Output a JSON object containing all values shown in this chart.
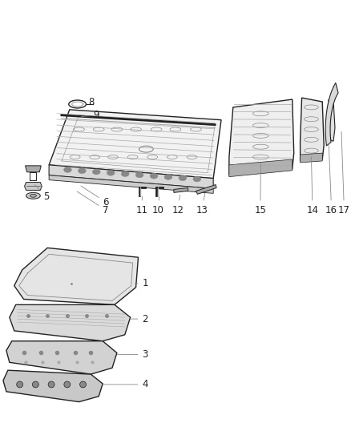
{
  "bg_color": "#ffffff",
  "line_color": "#444444",
  "dark_color": "#222222",
  "gray1": "#cccccc",
  "gray2": "#aaaaaa",
  "gray3": "#888888",
  "gray4": "#666666"
}
